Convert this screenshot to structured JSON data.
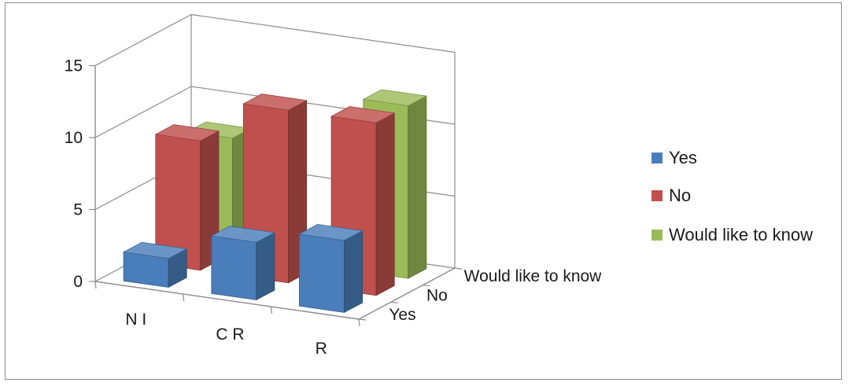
{
  "chart_data": {
    "type": "bar",
    "title": "",
    "xlabel": "",
    "ylabel": "",
    "categories": [
      "N I",
      "C R",
      "R"
    ],
    "depth_labels": [
      "Yes",
      "No",
      "Would like to know"
    ],
    "ylim": [
      0,
      15
    ],
    "yticks": [
      "0",
      "5",
      "10",
      "15"
    ],
    "grid": true,
    "legend_position": "right",
    "series": [
      {
        "name": "Yes",
        "color": "#4a7ebb",
        "values": [
          2,
          4,
          5
        ]
      },
      {
        "name": "No",
        "color": "#c0504d",
        "values": [
          9,
          12,
          12
        ]
      },
      {
        "name": "Would like to know",
        "color": "#9bbb59",
        "values": [
          8,
          1,
          12
        ]
      }
    ]
  }
}
